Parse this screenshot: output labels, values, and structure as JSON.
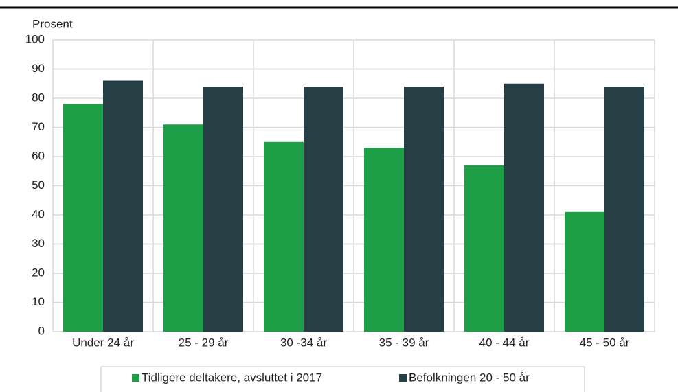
{
  "chart_data": {
    "type": "bar",
    "y_label": "Prosent",
    "categories": [
      "Under 24 år",
      "25 - 29 år",
      "30 -34 år",
      "35 - 39 år",
      "40 - 44 år",
      "45 - 50 år"
    ],
    "series": [
      {
        "name": "Tidligere deltakere, avsluttet i 2017",
        "color": "#1f9e48",
        "values": [
          78,
          71,
          65,
          63,
          57,
          41
        ]
      },
      {
        "name": "Befolkningen 20 - 50 år",
        "color": "#263f45",
        "values": [
          86,
          84,
          84,
          84,
          85,
          84
        ]
      }
    ],
    "ylim": [
      0,
      100
    ],
    "yticks": [
      0,
      10,
      20,
      30,
      40,
      50,
      60,
      70,
      80,
      90,
      100
    ],
    "grid": true,
    "legend": "bottom"
  }
}
